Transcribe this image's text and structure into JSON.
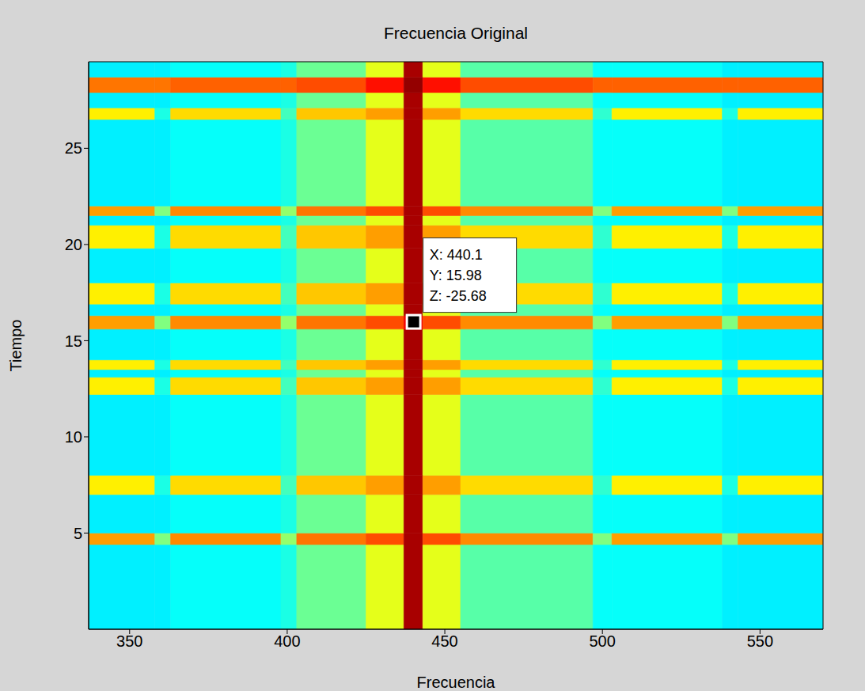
{
  "chart_data": {
    "type": "heatmap",
    "title": "Frecuencia Original",
    "x_label": "Frecuencia",
    "y_label": "Tiempo",
    "xlim": [
      337,
      570
    ],
    "ylim": [
      0,
      29.5
    ],
    "xticks": [
      350,
      400,
      450,
      500,
      550
    ],
    "yticks": [
      5,
      10,
      15,
      20,
      25
    ],
    "grid": false,
    "x_edges": [
      337,
      358,
      363,
      398,
      403,
      425,
      437,
      443,
      455,
      497,
      503,
      538,
      543,
      570
    ],
    "y_edges": [
      0,
      4.4,
      5.0,
      7.0,
      8.0,
      12.2,
      13.1,
      13.5,
      14.0,
      15.6,
      16.3,
      16.9,
      18.0,
      19.8,
      21.0,
      21.5,
      22.0,
      26.5,
      27.1,
      27.9,
      28.7,
      29.5
    ],
    "clim": [
      -70,
      -20
    ],
    "z": [
      [
        -52,
        -52,
        -51,
        -50,
        -46,
        -40,
        -22,
        -40,
        -47,
        -51,
        -51,
        -52,
        -52
      ],
      [
        -34,
        -45,
        -33,
        -44,
        -32,
        -30,
        -22,
        -30,
        -33,
        -45,
        -34,
        -45,
        -34
      ],
      [
        -52,
        -52,
        -51,
        -50,
        -46,
        -40,
        -22,
        -40,
        -47,
        -51,
        -51,
        -52,
        -52
      ],
      [
        -38,
        -50,
        -37,
        -48,
        -36,
        -34,
        -22,
        -34,
        -37,
        -49,
        -38,
        -50,
        -38
      ],
      [
        -52,
        -52,
        -51,
        -50,
        -46,
        -40,
        -22,
        -40,
        -47,
        -51,
        -51,
        -52,
        -52
      ],
      [
        -38,
        -50,
        -37,
        -48,
        -36,
        -34,
        -22,
        -34,
        -37,
        -49,
        -38,
        -50,
        -38
      ],
      [
        -52,
        -52,
        -51,
        -50,
        -46,
        -40,
        -22,
        -40,
        -47,
        -51,
        -51,
        -52,
        -52
      ],
      [
        -38,
        -50,
        -37,
        -48,
        -36,
        -34,
        -22,
        -34,
        -37,
        -49,
        -38,
        -50,
        -38
      ],
      [
        -52,
        -52,
        -51,
        -50,
        -46,
        -40,
        -22,
        -40,
        -47,
        -51,
        -51,
        -52,
        -52
      ],
      [
        -34,
        -45,
        -33,
        -44,
        -32,
        -30,
        -25.68,
        -30,
        -33,
        -45,
        -34,
        -45,
        -34
      ],
      [
        -52,
        -52,
        -51,
        -50,
        -46,
        -40,
        -22,
        -40,
        -47,
        -51,
        -51,
        -52,
        -52
      ],
      [
        -38,
        -50,
        -37,
        -48,
        -36,
        -34,
        -22,
        -34,
        -37,
        -49,
        -38,
        -50,
        -38
      ],
      [
        -52,
        -52,
        -51,
        -50,
        -46,
        -40,
        -22,
        -40,
        -47,
        -51,
        -51,
        -52,
        -52
      ],
      [
        -38,
        -50,
        -37,
        -48,
        -36,
        -34,
        -22,
        -34,
        -37,
        -49,
        -38,
        -50,
        -38
      ],
      [
        -52,
        -52,
        -51,
        -50,
        -46,
        -40,
        -22,
        -40,
        -47,
        -51,
        -51,
        -52,
        -52
      ],
      [
        -34,
        -45,
        -33,
        -44,
        -32,
        -30,
        -22,
        -30,
        -33,
        -45,
        -34,
        -45,
        -34
      ],
      [
        -52,
        -52,
        -51,
        -50,
        -46,
        -40,
        -22,
        -40,
        -47,
        -51,
        -51,
        -52,
        -52
      ],
      [
        -38,
        -50,
        -37,
        -48,
        -36,
        -34,
        -22,
        -34,
        -37,
        -49,
        -38,
        -50,
        -38
      ],
      [
        -52,
        -52,
        -51,
        -50,
        -46,
        -40,
        -22,
        -40,
        -47,
        -51,
        -51,
        -52,
        -52
      ],
      [
        -32,
        -32,
        -31,
        -31,
        -30,
        -27,
        -21,
        -27,
        -30,
        -31,
        -31,
        -31,
        -31
      ],
      [
        -52,
        -52,
        -51,
        -50,
        -46,
        -40,
        -22,
        -40,
        -47,
        -51,
        -51,
        -52,
        -52
      ]
    ],
    "datatip": {
      "x": 440.1,
      "y": 15.98,
      "z": -25.68,
      "labels": [
        "X: 440.1",
        "Y: 15.98",
        "Z: -25.68"
      ]
    }
  }
}
